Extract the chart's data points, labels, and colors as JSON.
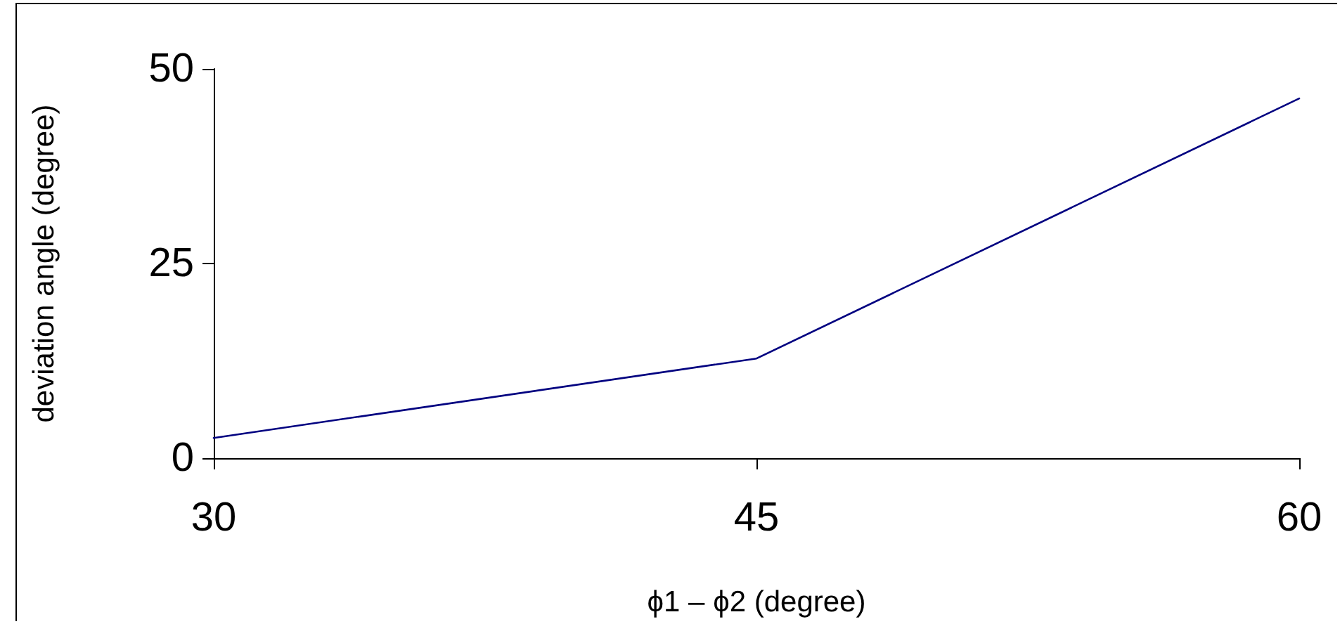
{
  "chart_data": {
    "type": "line",
    "xlabel": "ϕ1 – ϕ2 (degree)",
    "ylabel": "deviation angle (degree)",
    "x": [
      30,
      45,
      60
    ],
    "series": [
      {
        "color": "#000080",
        "values": [
          2.6,
          12.8,
          46.2
        ]
      }
    ],
    "xlim": [
      30,
      60
    ],
    "xticks": [
      30,
      45,
      60
    ],
    "ylim": [
      0,
      50
    ],
    "yticks": [
      0,
      25,
      50
    ],
    "grid": false,
    "marker": "none",
    "line_style": "solid"
  }
}
